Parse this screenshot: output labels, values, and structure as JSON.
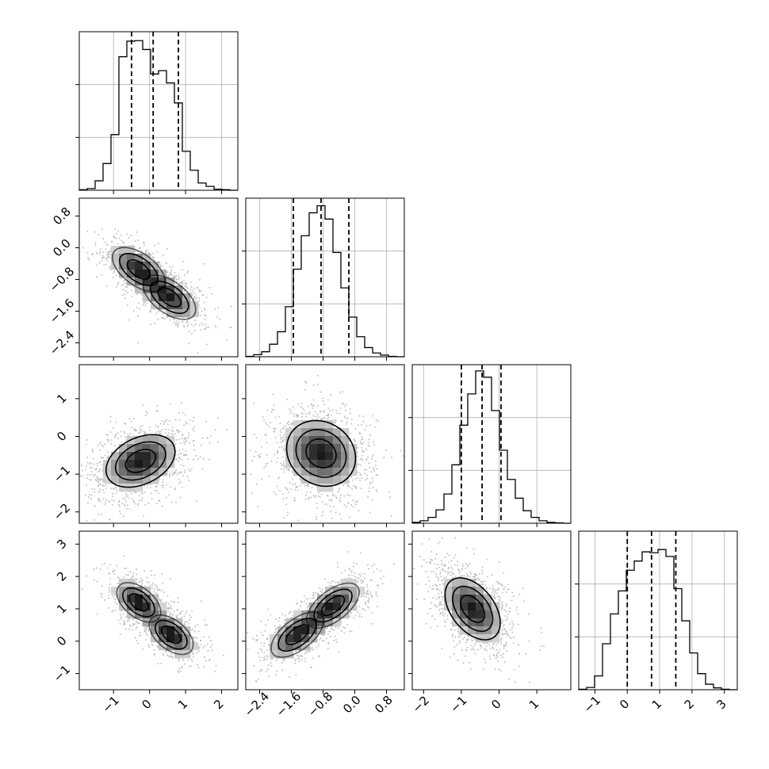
{
  "chart_data": {
    "type": "corner",
    "title": "",
    "grid": true,
    "parameters": [
      {
        "range": [
          -1.95,
          2.45
        ],
        "ticks": [
          {
            "v": -1,
            "label": "−1"
          },
          {
            "v": 0,
            "label": "0"
          },
          {
            "v": 1,
            "label": "1"
          },
          {
            "v": 2,
            "label": "2"
          }
        ],
        "quantiles": [
          -0.5,
          0.1,
          0.8
        ],
        "hist_bins": [
          -1.95,
          -1.73,
          -1.51,
          -1.29,
          -1.07,
          -0.85,
          -0.63,
          -0.41,
          -0.19,
          0.03,
          0.25,
          0.47,
          0.69,
          0.91,
          1.13,
          1.35,
          1.57,
          1.79,
          2.01,
          2.23,
          2.45
        ],
        "hist_counts": [
          1,
          3,
          17,
          48,
          100,
          240,
          268,
          269,
          253,
          209,
          215,
          193,
          157,
          70,
          36,
          13,
          7,
          2,
          1,
          0
        ],
        "hist_ylim": [
          0,
          285
        ]
      },
      {
        "range": [
          -2.75,
          1.25
        ],
        "ticks": [
          {
            "v": -2.4,
            "label": "−2.4"
          },
          {
            "v": -1.6,
            "label": "−1.6"
          },
          {
            "v": -0.8,
            "label": "−0.8"
          },
          {
            "v": 0.0,
            "label": "0.0"
          },
          {
            "v": 0.8,
            "label": "0.8"
          }
        ],
        "quantiles": [
          -1.55,
          -0.85,
          -0.15
        ],
        "hist_bins": [
          -2.75,
          -2.55,
          -2.35,
          -2.15,
          -1.95,
          -1.75,
          -1.55,
          -1.35,
          -1.15,
          -0.95,
          -0.75,
          -0.55,
          -0.35,
          -0.15,
          0.05,
          0.25,
          0.45,
          0.65,
          0.85,
          1.05,
          1.25
        ],
        "hist_counts": [
          1,
          5,
          12,
          30,
          60,
          120,
          210,
          290,
          345,
          362,
          330,
          250,
          165,
          95,
          48,
          22,
          9,
          4,
          1,
          0
        ],
        "hist_ylim": [
          0,
          380
        ]
      },
      {
        "range": [
          -2.3,
          1.9
        ],
        "ticks": [
          {
            "v": -2,
            "label": "−2"
          },
          {
            "v": -1,
            "label": "−1"
          },
          {
            "v": 0,
            "label": "0"
          },
          {
            "v": 1,
            "label": "1"
          }
        ],
        "quantiles": [
          -1.0,
          -0.45,
          0.05
        ],
        "hist_bins": [
          -2.3,
          -2.09,
          -1.88,
          -1.67,
          -1.46,
          -1.25,
          -1.04,
          -0.83,
          -0.62,
          -0.41,
          -0.2,
          0.01,
          0.22,
          0.43,
          0.64,
          0.85,
          1.06,
          1.27,
          1.48,
          1.69,
          1.9
        ],
        "hist_counts": [
          2,
          6,
          14,
          32,
          70,
          140,
          235,
          310,
          365,
          350,
          270,
          175,
          105,
          60,
          30,
          14,
          6,
          2,
          1,
          0
        ],
        "hist_ylim": [
          0,
          380
        ]
      },
      {
        "range": [
          -1.5,
          3.4
        ],
        "ticks": [
          {
            "v": -1,
            "label": "−1"
          },
          {
            "v": 0,
            "label": "0"
          },
          {
            "v": 1,
            "label": "1"
          },
          {
            "v": 2,
            "label": "2"
          },
          {
            "v": 3,
            "label": "3"
          }
        ],
        "quantiles": [
          0.0,
          0.75,
          1.5
        ],
        "hist_bins": [
          -1.5,
          -1.255,
          -1.01,
          -0.765,
          -0.52,
          -0.275,
          -0.03,
          0.215,
          0.46,
          0.705,
          0.95,
          1.195,
          1.44,
          1.685,
          1.93,
          2.175,
          2.42,
          2.665,
          2.91,
          3.155,
          3.4
        ],
        "hist_counts": [
          1,
          5,
          30,
          100,
          165,
          215,
          260,
          280,
          300,
          298,
          305,
          290,
          220,
          150,
          80,
          35,
          12,
          4,
          1,
          0
        ],
        "hist_ylim": [
          0,
          345
        ]
      }
    ],
    "pairs": [
      {
        "col": 0,
        "row": 1,
        "centers": [
          [
            -0.3,
            -0.55
          ],
          [
            0.55,
            -1.25
          ]
        ],
        "spread": [
          0.42,
          0.32
        ],
        "corr": -0.55
      },
      {
        "col": 0,
        "row": 2,
        "centers": [
          [
            -0.25,
            -0.65
          ]
        ],
        "spread": [
          0.55,
          0.4
        ],
        "corr": 0.35
      },
      {
        "col": 0,
        "row": 3,
        "centers": [
          [
            -0.3,
            1.2
          ],
          [
            0.6,
            0.2
          ]
        ],
        "spread": [
          0.35,
          0.35
        ],
        "corr": -0.5
      },
      {
        "col": 1,
        "row": 2,
        "centers": [
          [
            -0.85,
            -0.45
          ]
        ],
        "spread": [
          0.5,
          0.5
        ],
        "corr": -0.15
      },
      {
        "col": 1,
        "row": 3,
        "centers": [
          [
            -1.45,
            0.2
          ],
          [
            -0.55,
            1.1
          ]
        ],
        "spread": [
          0.38,
          0.4
        ],
        "corr": 0.6
      },
      {
        "col": 2,
        "row": 3,
        "centers": [
          [
            -0.7,
            1.0
          ]
        ],
        "spread": [
          0.42,
          0.55
        ],
        "corr": -0.45
      }
    ],
    "styles": {
      "line_color": "#000000",
      "grid_color": "#b0b0b0",
      "point_color": "#7f7f7f",
      "density_dark": "#1a1a1a",
      "density_light": "#ffffff"
    }
  }
}
